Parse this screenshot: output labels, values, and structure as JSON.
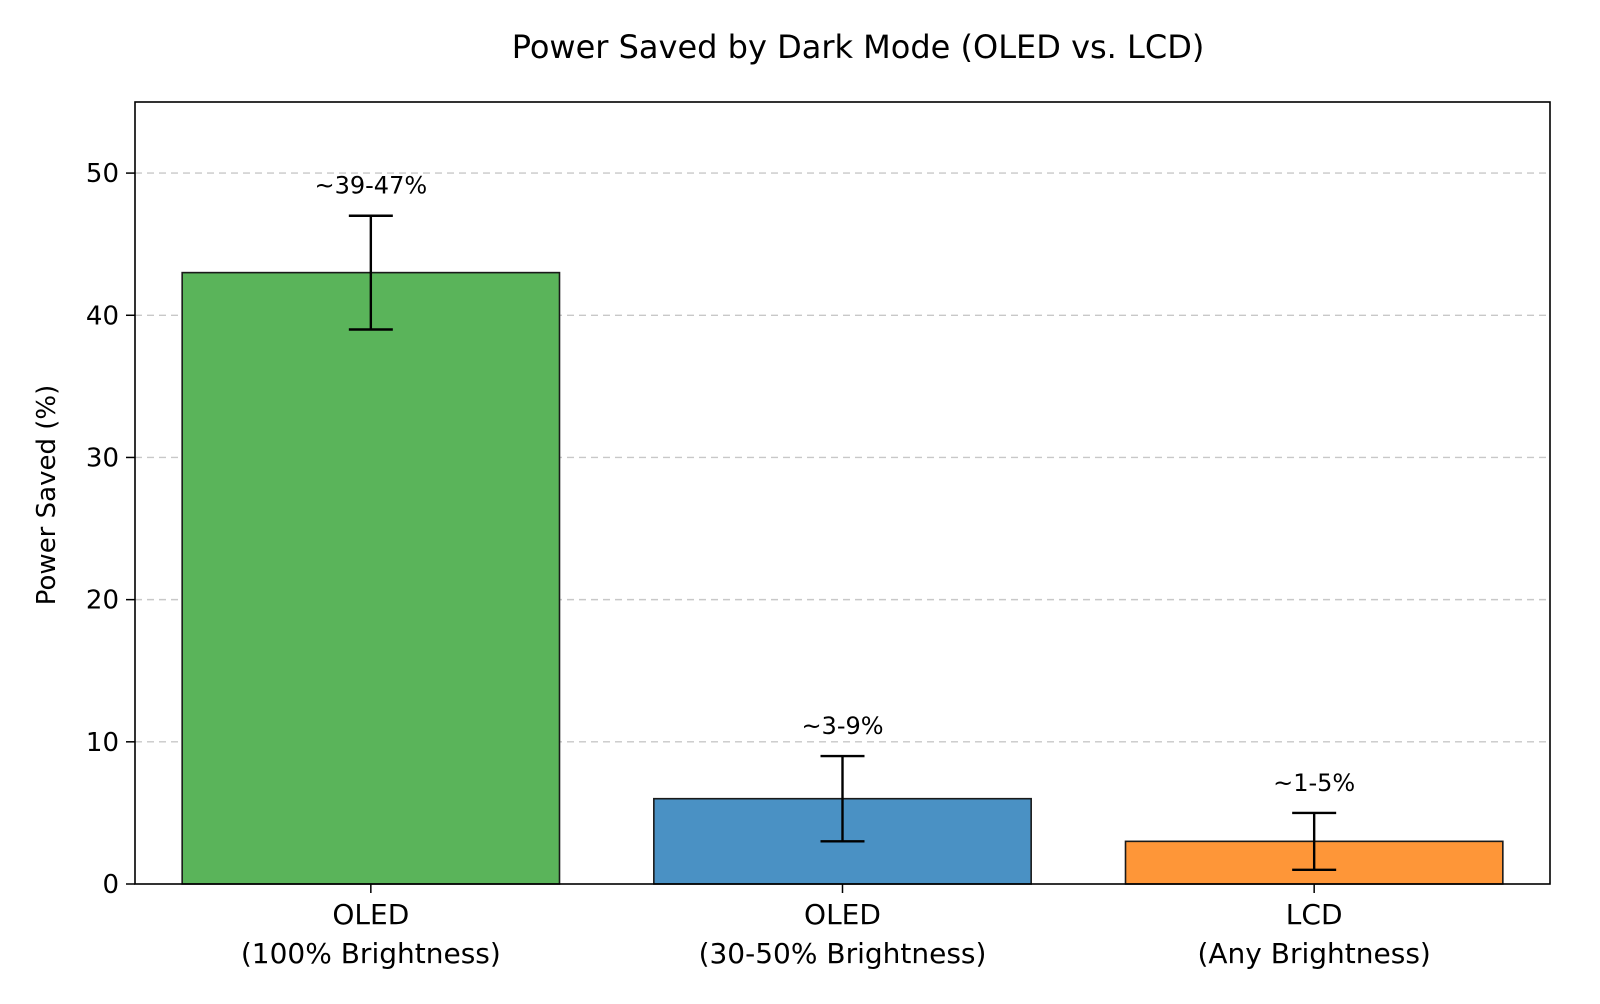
{
  "chart_data": {
    "type": "bar",
    "title": "Power Saved by Dark Mode (OLED vs. LCD)",
    "xlabel": "",
    "ylabel": "Power Saved (%)",
    "ylim": [
      0,
      55
    ],
    "yticks": [
      0,
      10,
      20,
      30,
      40,
      50
    ],
    "grid": "y-dashed",
    "categories": [
      [
        "OLED",
        "(100% Brightness)"
      ],
      [
        "OLED",
        "(30-50% Brightness)"
      ],
      [
        "LCD",
        "(Any Brightness)"
      ]
    ],
    "values": [
      43,
      6,
      3
    ],
    "error_low": [
      39,
      3,
      1
    ],
    "error_high": [
      47,
      9,
      5
    ],
    "data_labels": [
      "~39-47%",
      "~3-9%",
      "~1-5%"
    ],
    "colors": [
      "#5ab45a",
      "#4a91c4",
      "#fe9638"
    ]
  }
}
